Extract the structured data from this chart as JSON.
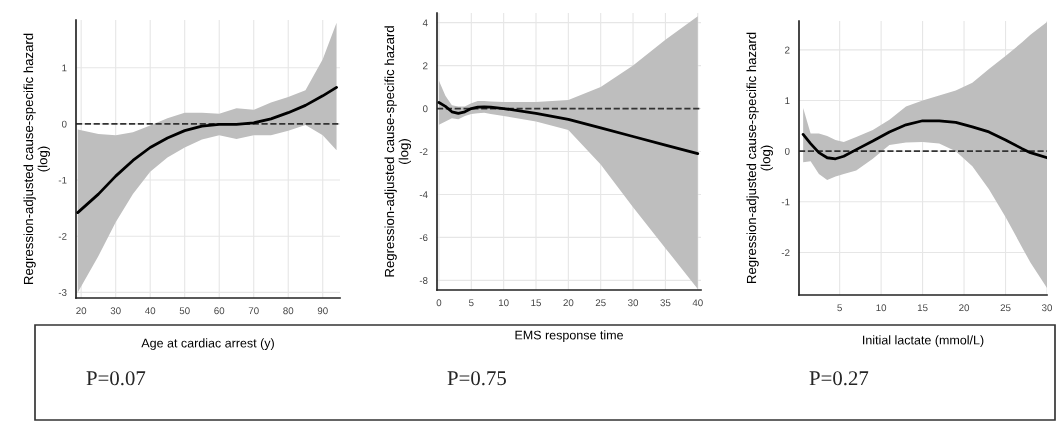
{
  "chart_data": [
    {
      "type": "line",
      "xlabel": "Age at cardiac arrest (y)",
      "ylabel": "Regression-adjusted cause-specific hazard\n(log)",
      "annotations": [
        "P=0.07"
      ],
      "xlim": [
        18.5,
        95
      ],
      "xticks": [
        20,
        30,
        40,
        50,
        60,
        70,
        80,
        90
      ],
      "ylim": [
        -3.1,
        1.85
      ],
      "yticks": [
        -3,
        -2,
        -1,
        0,
        1
      ],
      "grid": true,
      "line_style": "solid",
      "ref_lines": [
        {
          "axis": "y",
          "value": 0,
          "line_style": "dashed",
          "color": "#333333"
        }
      ],
      "series": [
        {
          "color": "#000000",
          "x": [
            19,
            25,
            30,
            35,
            40,
            45,
            50,
            55,
            60,
            65,
            70,
            75,
            80,
            85,
            90,
            94
          ],
          "values": [
            -1.58,
            -1.25,
            -0.93,
            -0.65,
            -0.42,
            -0.25,
            -0.12,
            -0.04,
            -0.01,
            -0.01,
            0.02,
            0.09,
            0.2,
            0.33,
            0.5,
            0.65
          ],
          "lower": [
            -3.0,
            -2.35,
            -1.75,
            -1.25,
            -0.85,
            -0.6,
            -0.42,
            -0.28,
            -0.2,
            -0.27,
            -0.2,
            -0.2,
            -0.12,
            -0.02,
            -0.2,
            -0.47
          ],
          "upper": [
            -0.1,
            -0.18,
            -0.2,
            -0.15,
            -0.03,
            0.1,
            0.2,
            0.2,
            0.18,
            0.28,
            0.25,
            0.38,
            0.48,
            0.6,
            1.15,
            1.8
          ]
        }
      ]
    },
    {
      "type": "line",
      "xlabel": "EMS response time",
      "ylabel": "Regression-adjusted cause-specific hazard\n(log)",
      "annotations": [
        "P=0.75"
      ],
      "xlim": [
        -0.3,
        40.5
      ],
      "xticks": [
        0,
        5,
        10,
        15,
        20,
        25,
        30,
        35,
        40
      ],
      "ylim": [
        -8.45,
        4.45
      ],
      "yticks": [
        -8,
        -6,
        -4,
        -2,
        0,
        2,
        4
      ],
      "grid": true,
      "line_style": "solid",
      "ref_lines": [
        {
          "axis": "y",
          "value": 0,
          "line_style": "dashed",
          "color": "#333333"
        }
      ],
      "series": [
        {
          "color": "#000000",
          "x": [
            0,
            1,
            2,
            3,
            4,
            5,
            6,
            7,
            8,
            10,
            15,
            20,
            25,
            30,
            35,
            40
          ],
          "values": [
            0.28,
            0.1,
            -0.15,
            -0.22,
            -0.15,
            0.0,
            0.07,
            0.08,
            0.07,
            0.0,
            -0.22,
            -0.5,
            -0.9,
            -1.3,
            -1.7,
            -2.1
          ],
          "lower": [
            -0.75,
            -0.6,
            -0.45,
            -0.5,
            -0.35,
            -0.25,
            -0.22,
            -0.2,
            -0.25,
            -0.35,
            -0.6,
            -1.0,
            -2.6,
            -4.6,
            -6.5,
            -8.4
          ],
          "upper": [
            1.3,
            0.6,
            0.15,
            0.1,
            0.1,
            0.25,
            0.35,
            0.35,
            0.33,
            0.3,
            0.3,
            0.4,
            1.0,
            2.0,
            3.2,
            4.3
          ]
        }
      ]
    },
    {
      "type": "line",
      "xlabel": "Initial lactate (mmol/L)",
      "ylabel": "Regression-adjusted cause-specific hazard\n(log)",
      "annotations": [
        "P=0.27"
      ],
      "xlim": [
        0.1,
        30
      ],
      "xticks": [
        5,
        10,
        15,
        20,
        25,
        30
      ],
      "ylim": [
        -2.84,
        2.57
      ],
      "yticks": [
        -2,
        -1,
        0,
        1,
        2
      ],
      "grid": true,
      "line_style": "solid",
      "ref_lines": [
        {
          "axis": "y",
          "value": 0,
          "line_style": "dashed",
          "color": "#333333"
        }
      ],
      "series": [
        {
          "color": "#000000",
          "x": [
            0.6,
            1.5,
            2.5,
            3.5,
            4.5,
            5.5,
            7,
            9,
            11,
            13,
            15,
            17,
            19,
            21,
            23,
            25,
            27,
            28,
            30
          ],
          "values": [
            0.33,
            0.15,
            -0.03,
            -0.13,
            -0.15,
            -0.1,
            0.03,
            0.2,
            0.38,
            0.52,
            0.6,
            0.6,
            0.57,
            0.48,
            0.38,
            0.22,
            0.05,
            -0.03,
            -0.13
          ],
          "lower": [
            -0.22,
            -0.2,
            -0.45,
            -0.57,
            -0.5,
            -0.45,
            -0.38,
            -0.15,
            0.12,
            0.17,
            0.18,
            0.15,
            0.0,
            -0.3,
            -0.75,
            -1.3,
            -1.9,
            -2.2,
            -2.7
          ],
          "upper": [
            0.85,
            0.35,
            0.35,
            0.3,
            0.22,
            0.18,
            0.28,
            0.42,
            0.62,
            0.88,
            1.0,
            1.1,
            1.2,
            1.35,
            1.62,
            1.88,
            2.15,
            2.3,
            2.55
          ]
        }
      ]
    }
  ]
}
